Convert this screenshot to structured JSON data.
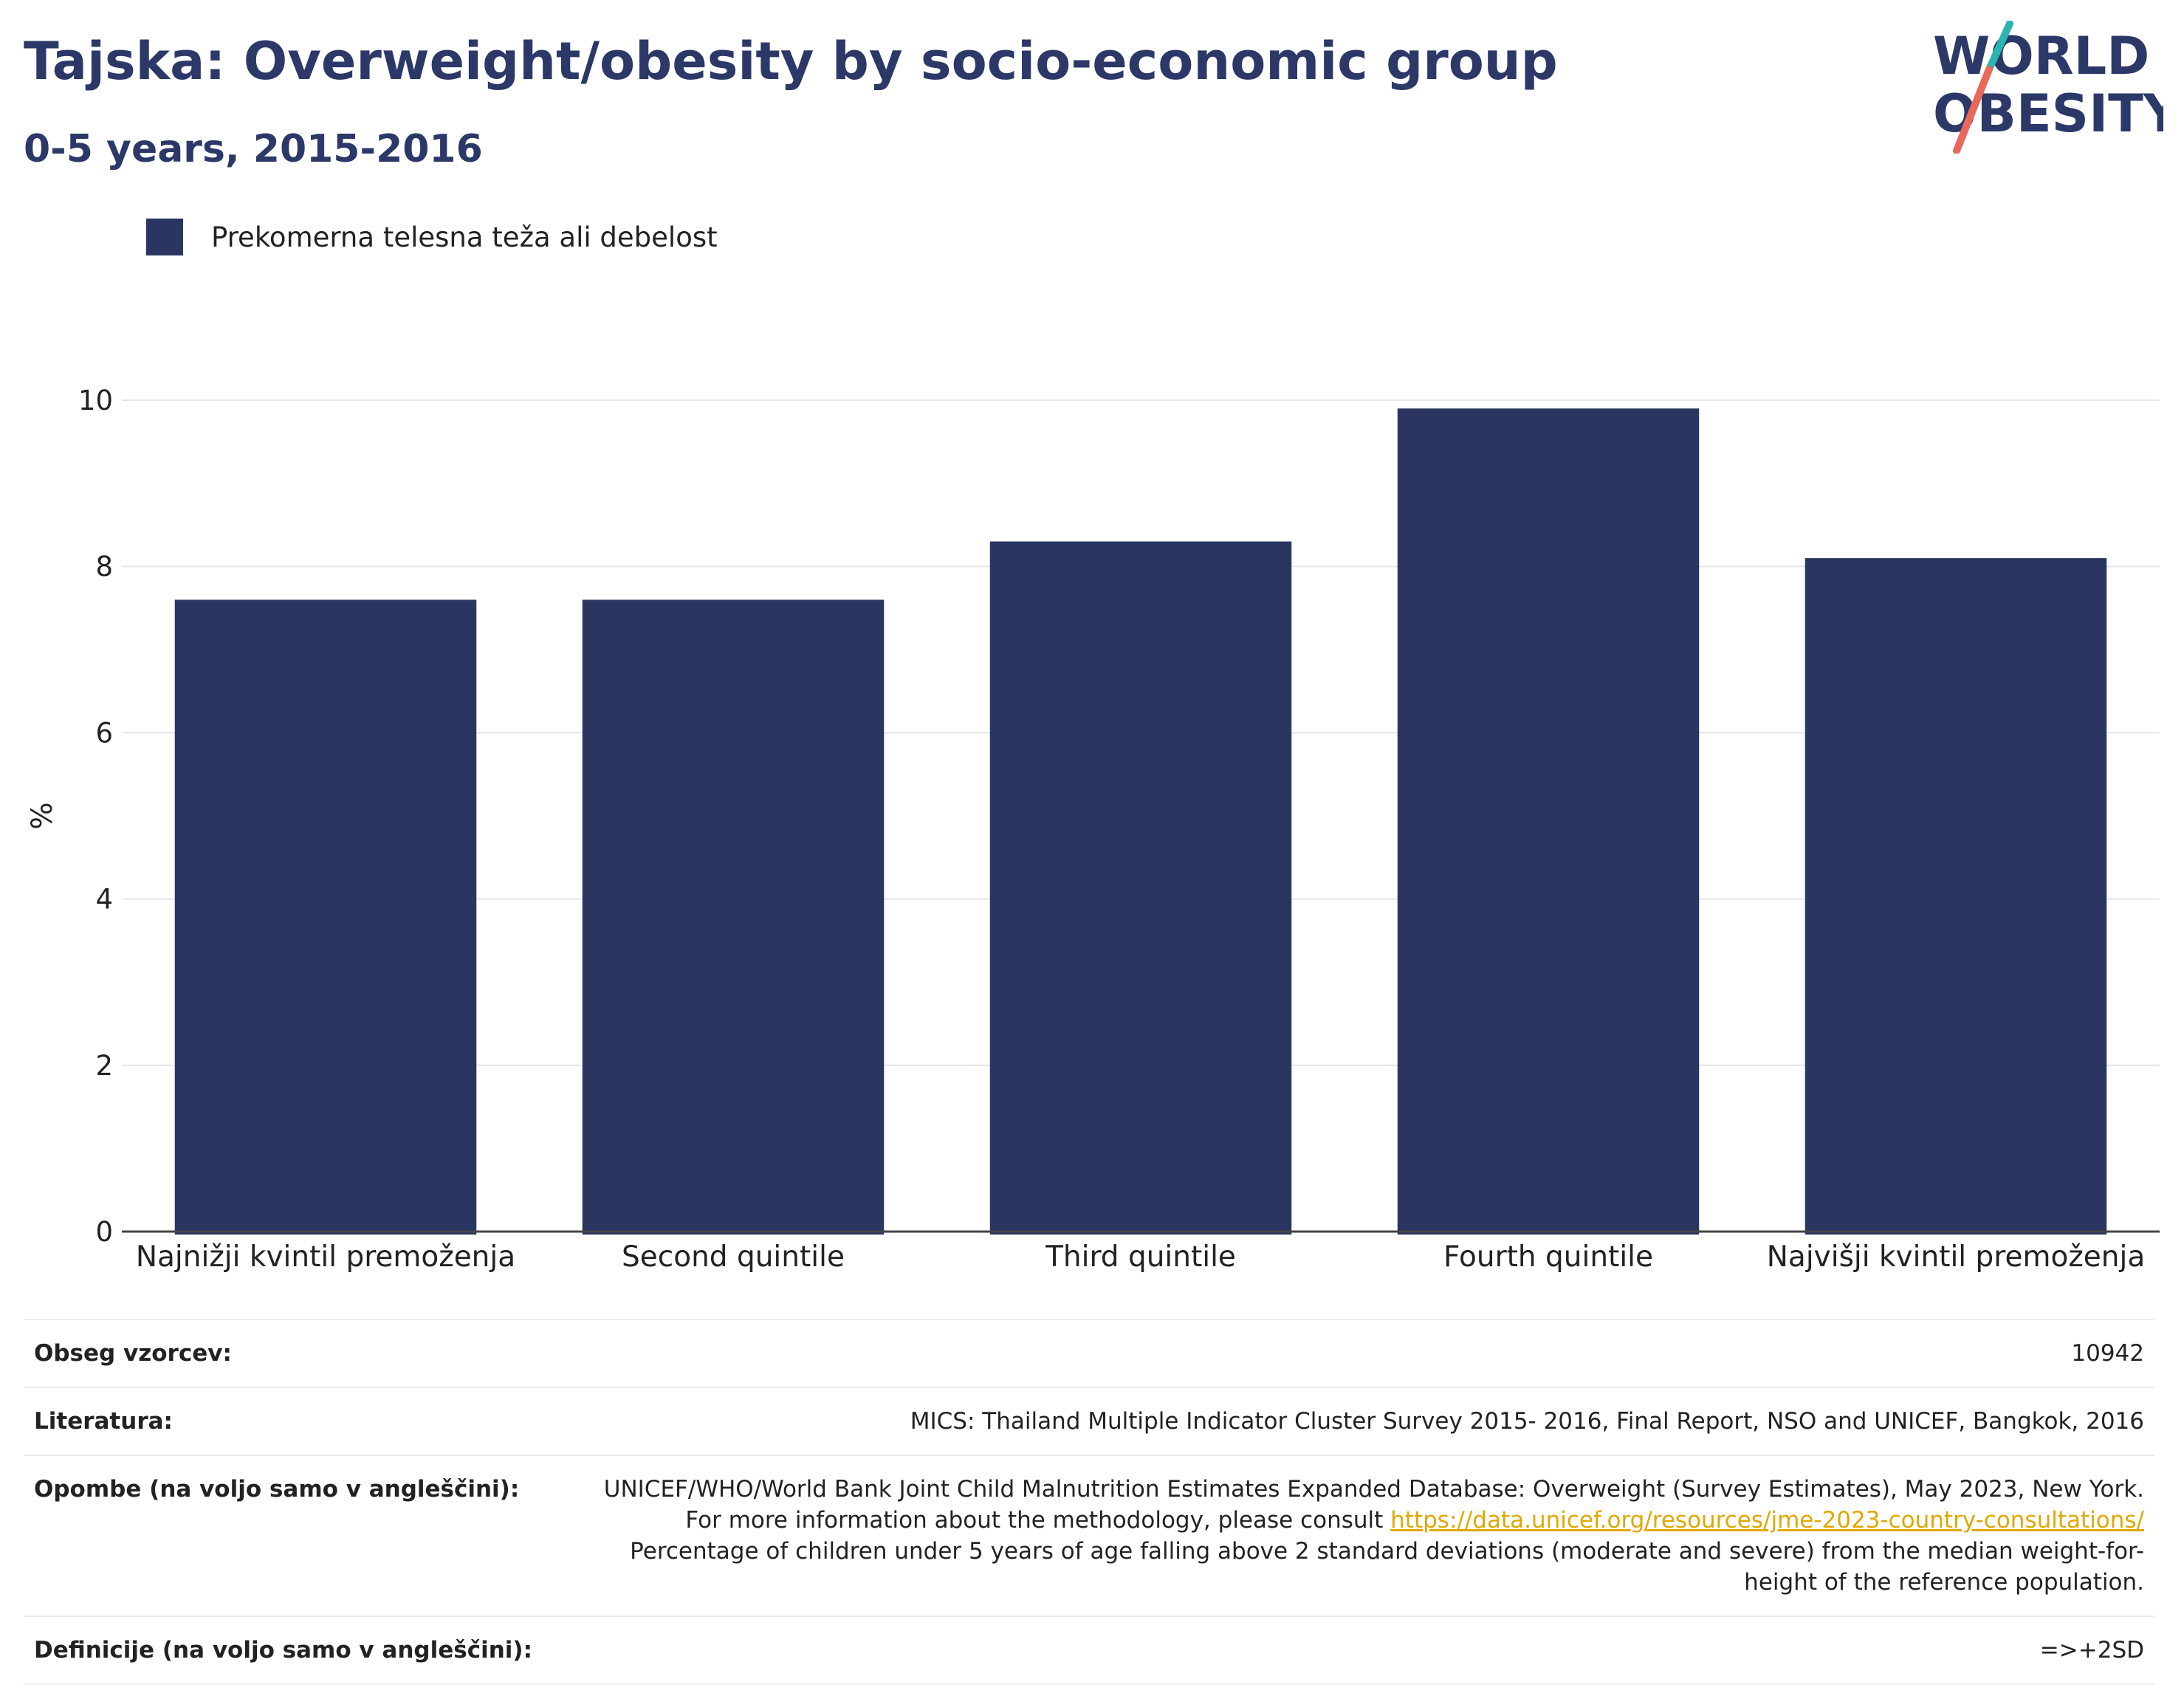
{
  "header": {
    "title": "Tajska: Overweight/obesity by socio-economic group",
    "subtitle": "0-5 years, 2015-2016"
  },
  "logo": {
    "line1": "WORLD",
    "line2": "OBESITY",
    "colors": {
      "text": "#2b3868",
      "slash_top": "#2bb5b0",
      "slash_bottom": "#e8685a"
    }
  },
  "legend": {
    "label": "Prekomerna telesna teža ali debelost",
    "color": "#2a3561"
  },
  "chart_data": {
    "type": "bar",
    "title": "Tajska: Overweight/obesity by socio-economic group",
    "subtitle": "0-5 years, 2015-2016",
    "xlabel": "",
    "ylabel": "%",
    "ylim": [
      0,
      10
    ],
    "yticks": [
      0,
      2,
      4,
      6,
      8,
      10
    ],
    "grid": true,
    "legend_position": "top-left",
    "categories": [
      "Najnižji kvintil premoženja",
      "Second quintile",
      "Third quintile",
      "Fourth quintile",
      "Najvišji kvintil premoženja"
    ],
    "series": [
      {
        "name": "Prekomerna telesna teža ali debelost",
        "values": [
          7.6,
          7.6,
          8.3,
          9.9,
          8.1
        ],
        "color": "#2a3561"
      }
    ]
  },
  "meta": {
    "sample_size": {
      "label": "Obseg vzorcev:",
      "value": "10942"
    },
    "literature": {
      "label": "Literatura:",
      "value": "MICS: Thailand Multiple Indicator Cluster Survey 2015- 2016, Final Report, NSO and UNICEF, Bangkok, 2016"
    },
    "notes": {
      "label": "Opombe (na voljo samo v angleščini):",
      "text_before": "UNICEF/WHO/World Bank Joint Child Malnutrition Estimates Expanded Database: Overweight (Survey Estimates), May 2023, New York. For more information about the methodology, please consult ",
      "link": "https://data.unicef.org/resources/jme-2023-country-consultations/",
      "text_after": "Percentage of children under 5 years of age falling above 2 standard deviations (moderate and severe) from the median weight-for-height of the reference population."
    },
    "definitions": {
      "label": "Definicije (na voljo samo v angleščini):",
      "value": "=>+2SD"
    }
  }
}
